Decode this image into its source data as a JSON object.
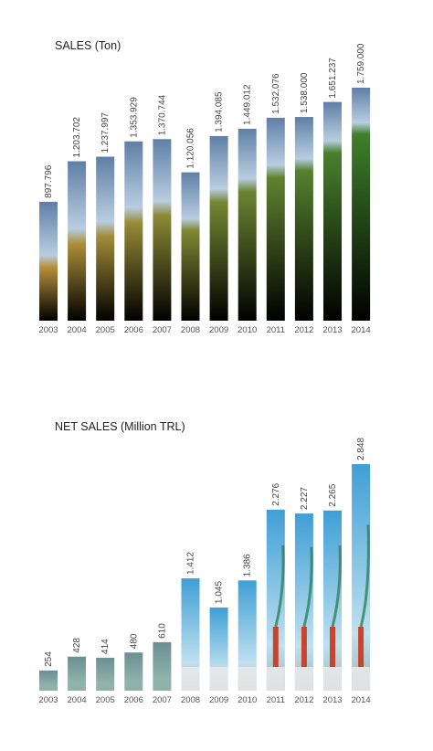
{
  "charts": [
    {
      "id": "sales",
      "title": "SALES (Ton)",
      "colors": {
        "sky_top": "#5f7fa6",
        "sky_bottom": "#b9cde0",
        "fill_from": "#b78f3a",
        "fill_to": "#3f7f2c"
      }
    },
    {
      "id": "net-sales",
      "title": "NET SALES (Million TRL)",
      "colors": {
        "low_top": "#6b8f92",
        "low_bottom": "#90b2ab",
        "sky_top": "#3f9fd6",
        "sky_bottom": "#bfe0ef",
        "building": "#eaeaea",
        "chimney": "#c8442e",
        "plume": "#2f7f5c"
      }
    }
  ],
  "chart_data": [
    {
      "type": "bar",
      "title": "SALES (Ton)",
      "categories": [
        "2003",
        "2004",
        "2005",
        "2006",
        "2007",
        "2008",
        "2009",
        "2010",
        "2011",
        "2012",
        "2013",
        "2014"
      ],
      "values": [
        897796,
        1203702,
        1237997,
        1353929,
        1370744,
        1120056,
        1394085,
        1449012,
        1532076,
        1538000,
        1651237,
        1759000
      ],
      "labels": [
        "897.796",
        "1.203.702",
        "1.237.997",
        "1.353.929",
        "1.370.744",
        "1.120.056",
        "1.394.085",
        "1.449.012",
        "1.532.076",
        "1.538.000",
        "1.651.237",
        "1.759.000"
      ],
      "xlabel": "",
      "ylabel": ""
    },
    {
      "type": "bar",
      "title": "NET SALES (Million TRL)",
      "categories": [
        "2003",
        "2004",
        "2005",
        "2006",
        "2007",
        "2008",
        "2009",
        "2010",
        "2011",
        "2012",
        "2013",
        "2014"
      ],
      "values": [
        254,
        428,
        414,
        480,
        610,
        1412,
        1045,
        1386,
        2276,
        2227,
        2265,
        2848
      ],
      "labels": [
        "254",
        "428",
        "414",
        "480",
        "610",
        "1.412",
        "1.045",
        "1.386",
        "2.276",
        "2.227",
        "2.265",
        "2.848"
      ],
      "xlabel": "",
      "ylabel": ""
    }
  ]
}
